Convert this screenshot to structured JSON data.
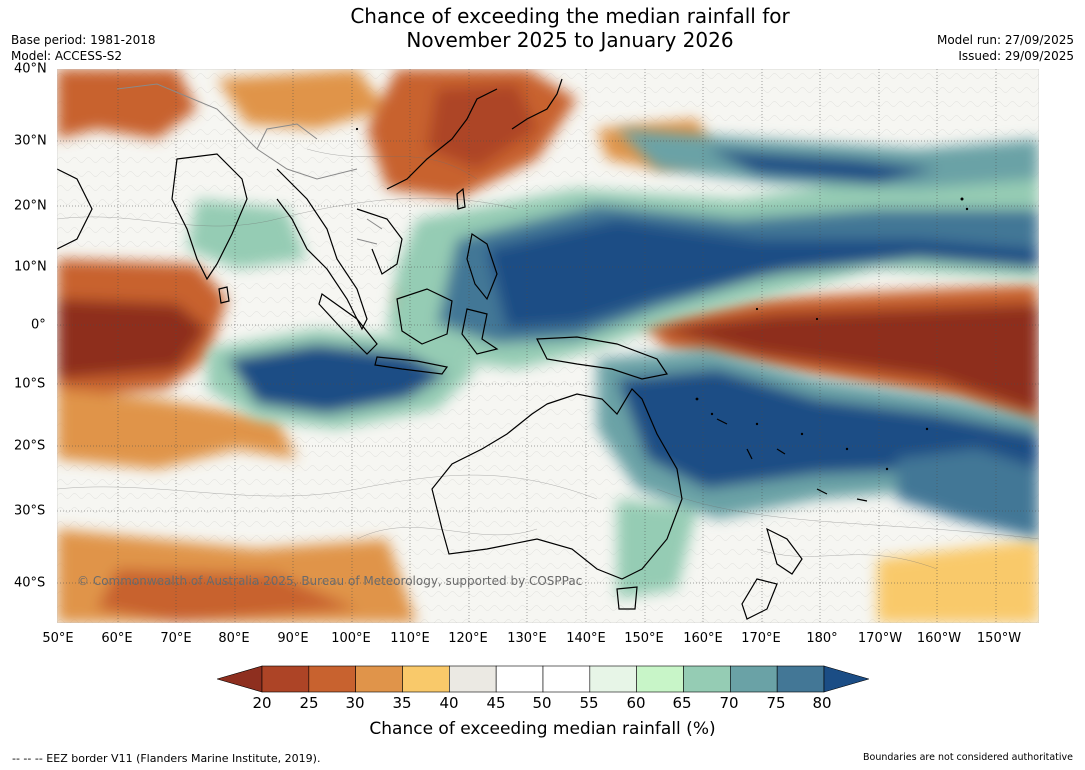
{
  "title_line1": "Chance of exceeding the median rainfall for",
  "title_line2": "November 2025 to January 2026",
  "base_period": "Base period: 1981-2018",
  "model": "Model: ACCESS-S2",
  "model_run": "Model run: 27/09/2025",
  "issued": "Issued: 29/09/2025",
  "copyright": "© Commonwealth of Australia 2025, Bureau of Meteorology, supported by COSPPac",
  "lat_labels": [
    "40°N",
    "30°N",
    "20°N",
    "10°N",
    "0°",
    "10°S",
    "20°S",
    "30°S",
    "40°S"
  ],
  "lon_labels": [
    "50°E",
    "60°E",
    "70°E",
    "80°E",
    "90°E",
    "100°E",
    "110°E",
    "120°E",
    "130°E",
    "140°E",
    "150°E",
    "160°E",
    "170°E",
    "180°",
    "170°W",
    "160°W",
    "150°W"
  ],
  "colorbar": {
    "ticks": [
      "20",
      "25",
      "30",
      "35",
      "40",
      "45",
      "50",
      "55",
      "60",
      "65",
      "70",
      "75",
      "80"
    ],
    "colors": [
      "#8e2f1f",
      "#ad4426",
      "#c8622f",
      "#e0944a",
      "#f9c96a",
      "#ebe9e3",
      "#ffffff",
      "#ffffff",
      "#e7f5e7",
      "#c8f5c8",
      "#95ccb4",
      "#6aa2a6",
      "#437796",
      "#1b4d85"
    ],
    "label": "Chance of exceeding median rainfall (%)"
  },
  "footer_left": "--  --  -- EEZ border V11 (Flanders Marine Institute, 2019).",
  "footer_right": "Boundaries are not considered authoritative"
}
